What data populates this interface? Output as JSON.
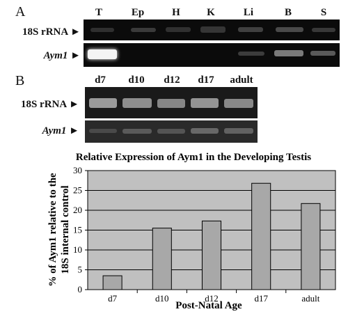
{
  "panels": {
    "a": "A",
    "b": "B"
  },
  "gel_a": {
    "lanes": [
      "T",
      "Ep",
      "H",
      "K",
      "Li",
      "B",
      "S"
    ],
    "rows": [
      {
        "label": "18S rRNA",
        "italic": false
      },
      {
        "label": "Aym1",
        "italic": true
      }
    ]
  },
  "gel_b": {
    "lanes": [
      "d7",
      "d10",
      "d12",
      "d17",
      "adult"
    ],
    "rows": [
      {
        "label": "18S rRNA",
        "italic": false
      },
      {
        "label": "Aym1",
        "italic": true
      }
    ]
  },
  "chart_data": {
    "type": "bar",
    "title": "Relative Expression of Aym1 in the Developing Testis",
    "xlabel": "Post-Natal Age",
    "ylabel_lines": [
      "% of Aym1 relative to the",
      "18S internal control"
    ],
    "categories": [
      "d7",
      "d10",
      "d12",
      "d17",
      "adult"
    ],
    "values": [
      3.5,
      15.5,
      17.3,
      26.8,
      21.7
    ],
    "ylim": [
      0,
      30
    ],
    "yticks": [
      0,
      5,
      10,
      15,
      20,
      25,
      30
    ],
    "grid": true,
    "colors": {
      "bar": "#a8a8a8",
      "plot_bg": "#c0c0c0",
      "grid": "#000000"
    }
  }
}
